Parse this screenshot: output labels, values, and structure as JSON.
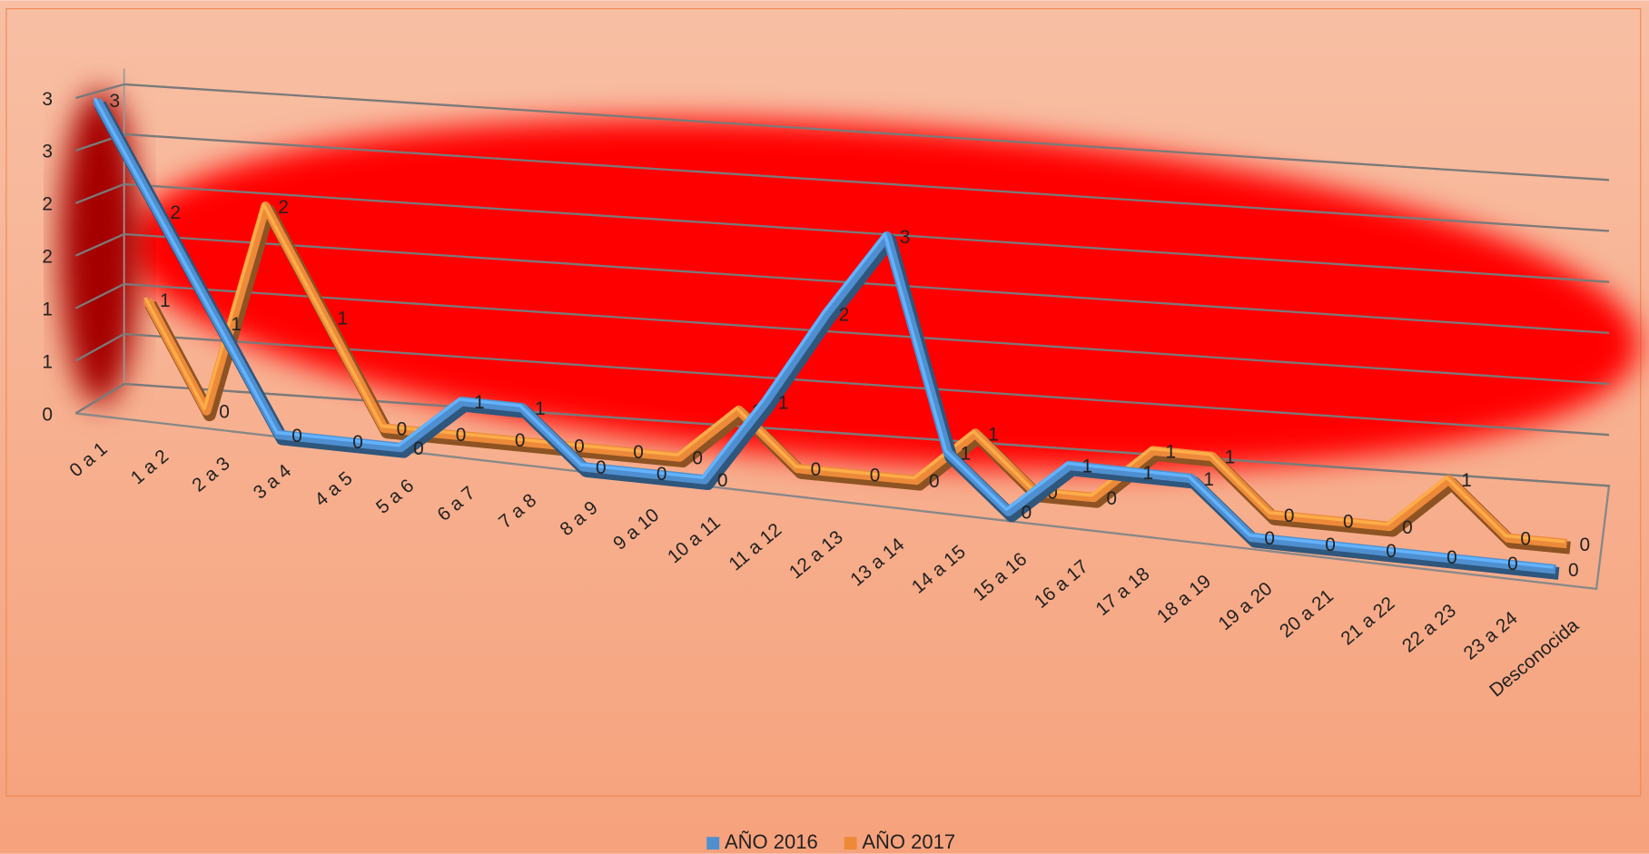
{
  "chart_data": {
    "type": "line3d",
    "categories": [
      "0 a 1",
      "1 a 2",
      "2 a 3",
      "3 a 4",
      "4 a 5",
      "5 a 6",
      "6 a 7",
      "7 a 8",
      "8 a 9",
      "9 a 10",
      "10 a 11",
      "11 a 12",
      "12 a 13",
      "13 a 14",
      "14 a 15",
      "15 a 16",
      "16 a 17",
      "17 a 18",
      "18 a 19",
      "19 a 20",
      "20 a 21",
      "21 a 22",
      "22 a 23",
      "23 a 24",
      "Desconocida"
    ],
    "series": [
      {
        "name": "AÑO 2016",
        "color": "#4f8fcf",
        "values": [
          3,
          2,
          1,
          0,
          0,
          0,
          0.5,
          0.5,
          0,
          0,
          0,
          0.8,
          1.7,
          2.5,
          0.5,
          0,
          0.5,
          0.5,
          0.5,
          0,
          0,
          0,
          0,
          0,
          0
        ],
        "value_labels": [
          "3",
          "2",
          "1",
          "0",
          "0",
          "0",
          "1",
          "1",
          "0",
          "0",
          "0",
          "1",
          "2",
          "3",
          "1",
          "0",
          "1",
          "1",
          "1",
          "0",
          "0",
          "0",
          "0",
          "0",
          "0"
        ]
      },
      {
        "name": "AÑO 2017",
        "color": "#ed8a3a",
        "values": [
          1,
          0,
          2,
          1,
          0,
          0,
          0,
          0,
          0,
          0,
          0.5,
          0,
          0,
          0,
          0.5,
          0,
          0,
          0.5,
          0.5,
          0,
          0,
          0,
          0.5,
          0,
          0
        ],
        "value_labels": [
          "1",
          "0",
          "2",
          "1",
          "0",
          "0",
          "0",
          "0",
          "0",
          "0",
          "1",
          "0",
          "0",
          "0",
          "1",
          "0",
          "0",
          "1",
          "1",
          "0",
          "0",
          "0",
          "1",
          "0",
          "0"
        ]
      }
    ],
    "ylim": [
      0,
      3
    ],
    "yticks": [
      0,
      {
        "value": 0.5,
        "label": "1"
      },
      1,
      {
        "value": 1.5,
        "label": "2"
      },
      2,
      {
        "value": 2.5,
        "label": "3"
      },
      3
    ],
    "grid": true,
    "legend": "bottom"
  }
}
